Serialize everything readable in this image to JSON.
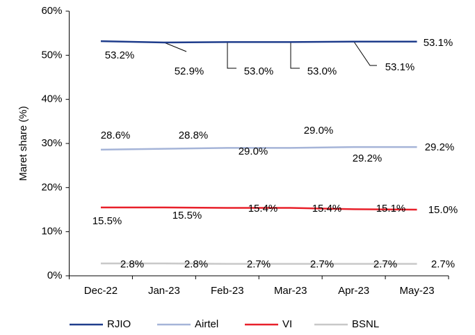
{
  "chart_data": {
    "type": "line",
    "y_axis_label": "Maret share (%)",
    "categories": [
      "Dec-22",
      "Jan-23",
      "Feb-23",
      "Mar-23",
      "Apr-23",
      "May-23"
    ],
    "series": [
      {
        "name": "RJIO",
        "color": "#1f3d8c",
        "values": [
          53.2,
          52.9,
          53.0,
          53.0,
          53.1,
          53.1
        ],
        "value_labels": [
          "53.2%",
          "52.9%",
          "53.0%",
          "53.0%",
          "53.1%",
          "53.1%"
        ]
      },
      {
        "name": "Airtel",
        "color": "#a5b4d8",
        "values": [
          28.6,
          28.8,
          29.0,
          29.0,
          29.2,
          29.2
        ],
        "value_labels": [
          "28.6%",
          "28.8%",
          "29.0%",
          "29.0%",
          "29.2%",
          "29.2%"
        ]
      },
      {
        "name": "VI",
        "color": "#e8202a",
        "values": [
          15.5,
          15.5,
          15.4,
          15.4,
          15.1,
          15.0
        ],
        "value_labels": [
          "15.5%",
          "15.5%",
          "15.4%",
          "15.4%",
          "15.1%",
          "15.0%"
        ]
      },
      {
        "name": "BSNL",
        "color": "#c8c8c8",
        "values": [
          2.8,
          2.8,
          2.7,
          2.7,
          2.7,
          2.7
        ],
        "value_labels": [
          "2.8%",
          "2.8%",
          "2.7%",
          "2.7%",
          "2.7%",
          "2.7%"
        ]
      }
    ],
    "ylim": [
      0,
      60
    ],
    "yticks": [
      {
        "value": 0,
        "label": "0%"
      },
      {
        "value": 10,
        "label": "10%"
      },
      {
        "value": 20,
        "label": "20%"
      },
      {
        "value": 30,
        "label": "30%"
      },
      {
        "value": 40,
        "label": "40%"
      },
      {
        "value": 50,
        "label": "50%"
      },
      {
        "value": 60,
        "label": "60%"
      }
    ],
    "legend": "bottom"
  }
}
